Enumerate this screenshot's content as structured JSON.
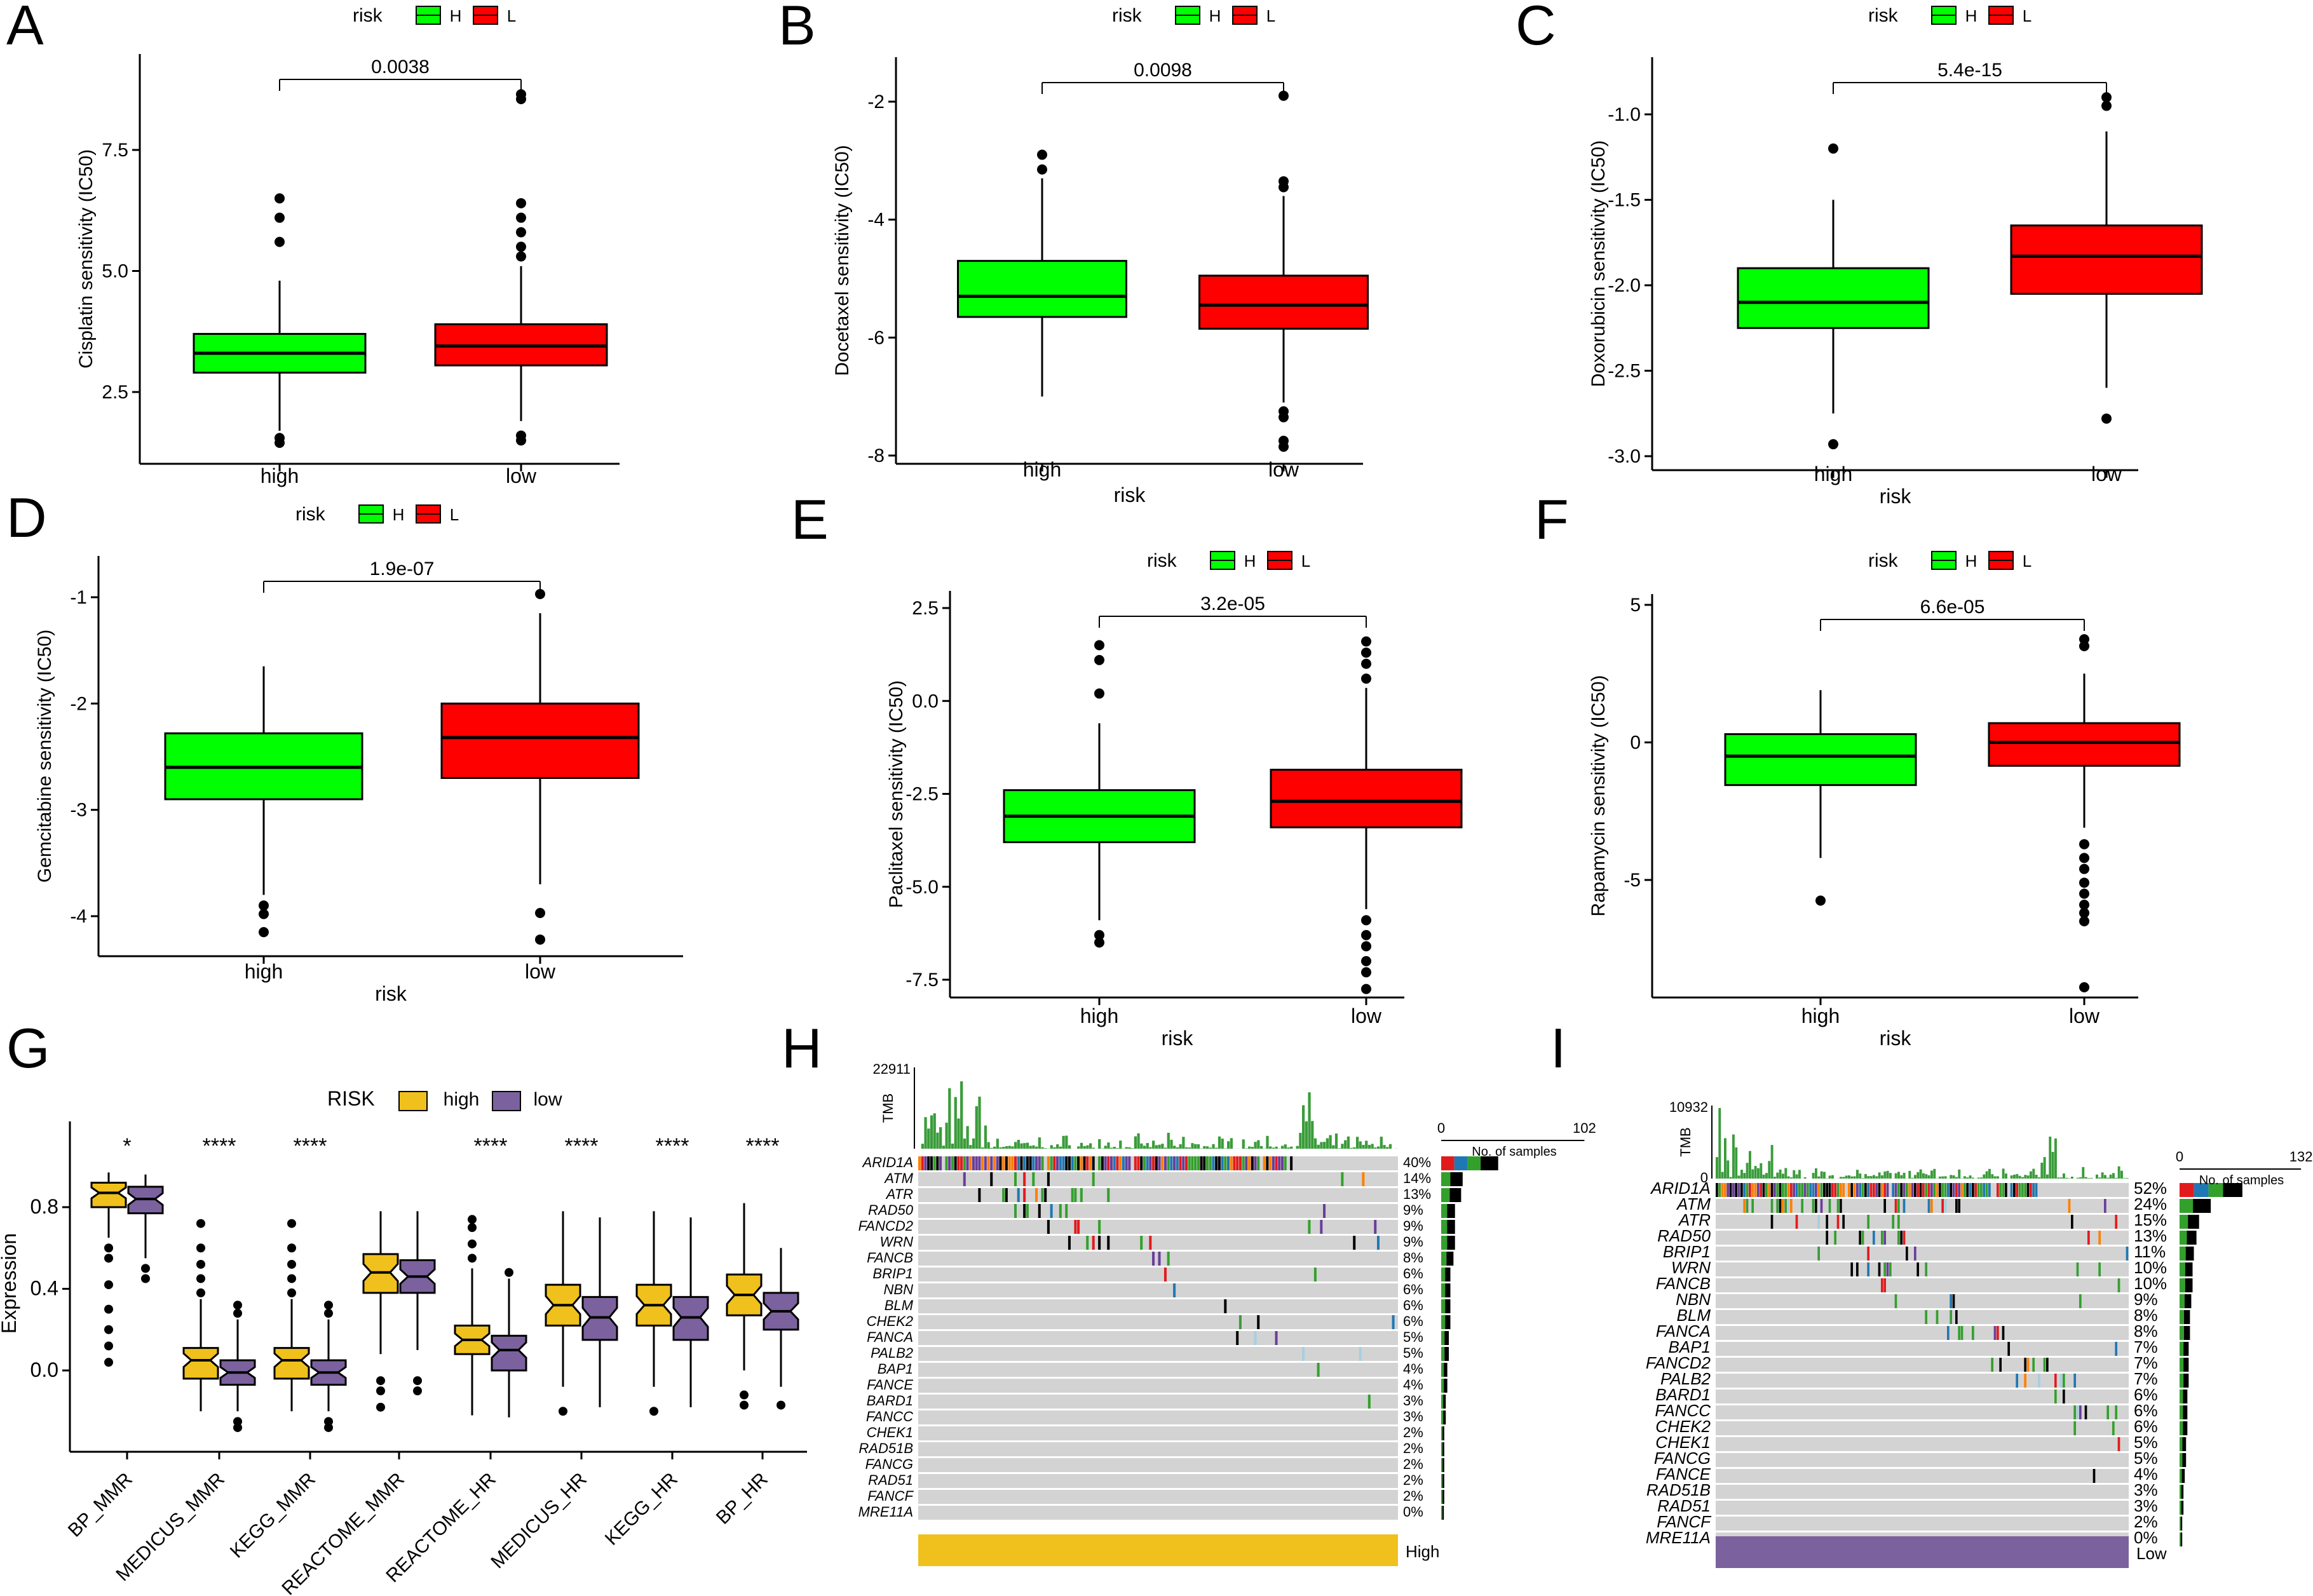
{
  "colors": {
    "H": "#00ff00",
    "L": "#ff0000",
    "high": "#f0c11c",
    "low": "#7b629e",
    "grey": "#d3d3d3",
    "tmb": "#3a9c3a"
  },
  "chart_data": [
    {
      "id": "A",
      "type": "box",
      "panel_label": "A",
      "legend_title": "risk",
      "legend_items": [
        "H",
        "L"
      ],
      "ylabel": "Cisplatin sensitivity (IC50)",
      "xlabel": "",
      "categories": [
        "high",
        "low"
      ],
      "yticks": [
        "2.5",
        "5.0",
        "7.5"
      ],
      "pvalue": "0.0038",
      "boxes": [
        {
          "q1": 2.9,
          "median": 3.3,
          "q3": 3.7,
          "whislo": 1.7,
          "whishi": 4.8,
          "outliers": [
            1.45,
            1.55,
            5.6,
            6.1,
            6.5
          ]
        },
        {
          "q1": 3.05,
          "median": 3.45,
          "q3": 3.9,
          "whislo": 1.9,
          "whishi": 5.1,
          "outliers": [
            1.5,
            1.6,
            5.3,
            5.5,
            5.8,
            6.1,
            6.4,
            8.55,
            8.65
          ]
        }
      ]
    },
    {
      "id": "B",
      "type": "box",
      "panel_label": "B",
      "legend_title": "risk",
      "legend_items": [
        "H",
        "L"
      ],
      "ylabel": "Docetaxel sensitivity (IC50)",
      "xlabel": "risk",
      "categories": [
        "high",
        "low"
      ],
      "yticks": [
        "-2",
        "-4",
        "-6",
        "-8"
      ],
      "pvalue": "0.0098",
      "boxes": [
        {
          "q1": -5.65,
          "median": -5.3,
          "q3": -4.7,
          "whislo": -7.0,
          "whishi": -3.3,
          "outliers": [
            -2.9,
            -3.15
          ]
        },
        {
          "q1": -5.85,
          "median": -5.45,
          "q3": -4.95,
          "whislo": -7.1,
          "whishi": -3.6,
          "outliers": [
            -1.9,
            -3.35,
            -3.45,
            -7.25,
            -7.35,
            -7.75,
            -7.85
          ]
        }
      ]
    },
    {
      "id": "C",
      "type": "box",
      "panel_label": "C",
      "legend_title": "risk",
      "legend_items": [
        "H",
        "L"
      ],
      "ylabel": "Doxorubicin sensitivity (IC50)",
      "xlabel": "risk",
      "categories": [
        "high",
        "low"
      ],
      "yticks": [
        "-1.0",
        "-1.5",
        "-2.0",
        "-2.5",
        "-3.0"
      ],
      "pvalue": "5.4e-15",
      "boxes": [
        {
          "q1": -2.25,
          "median": -2.1,
          "q3": -1.9,
          "whislo": -2.75,
          "whishi": -1.5,
          "outliers": [
            -1.2,
            -2.93
          ]
        },
        {
          "q1": -2.05,
          "median": -1.83,
          "q3": -1.65,
          "whislo": -2.6,
          "whishi": -1.1,
          "outliers": [
            -0.9,
            -0.95,
            -2.78
          ]
        }
      ]
    },
    {
      "id": "D",
      "type": "box",
      "panel_label": "D",
      "legend_title": "risk",
      "legend_items": [
        "H",
        "L"
      ],
      "ylabel": "Gemcitabine sensitivity (IC50)",
      "xlabel": "risk",
      "categories": [
        "high",
        "low"
      ],
      "yticks": [
        "-1",
        "-2",
        "-3",
        "-4"
      ],
      "pvalue": "1.9e-07",
      "boxes": [
        {
          "q1": -2.9,
          "median": -2.6,
          "q3": -2.28,
          "whislo": -3.8,
          "whishi": -1.65,
          "outliers": [
            -3.9,
            -3.98,
            -4.15
          ]
        },
        {
          "q1": -2.7,
          "median": -2.32,
          "q3": -2.0,
          "whislo": -3.7,
          "whishi": -1.15,
          "outliers": [
            -0.97,
            -3.97,
            -4.22
          ]
        }
      ]
    },
    {
      "id": "E",
      "type": "box",
      "panel_label": "E",
      "legend_title": "risk",
      "legend_items": [
        "H",
        "L"
      ],
      "ylabel": "Paclitaxel sensitivity (IC50)",
      "xlabel": "risk",
      "categories": [
        "high",
        "low"
      ],
      "yticks": [
        "2.5",
        "0.0",
        "-2.5",
        "-5.0",
        "-7.5"
      ],
      "pvalue": "3.2e-05",
      "boxes": [
        {
          "q1": -3.8,
          "median": -3.1,
          "q3": -2.4,
          "whislo": -5.9,
          "whishi": -0.6,
          "outliers": [
            0.2,
            1.1,
            1.5,
            -6.3,
            -6.5
          ]
        },
        {
          "q1": -3.4,
          "median": -2.7,
          "q3": -1.85,
          "whislo": -5.6,
          "whishi": 0.35,
          "outliers": [
            0.6,
            1.0,
            1.3,
            1.6,
            -5.9,
            -6.3,
            -6.6,
            -7.0,
            -7.3,
            -7.75
          ]
        }
      ]
    },
    {
      "id": "F",
      "type": "box",
      "panel_label": "F",
      "legend_title": "risk",
      "legend_items": [
        "H",
        "L"
      ],
      "ylabel": "Rapamycin sensitivity (IC50)",
      "xlabel": "risk",
      "categories": [
        "high",
        "low"
      ],
      "yticks": [
        "5",
        "0",
        "-5"
      ],
      "pvalue": "6.6e-05",
      "boxes": [
        {
          "q1": -1.55,
          "median": -0.5,
          "q3": 0.3,
          "whislo": -4.2,
          "whishi": 1.9,
          "outliers": [
            -5.75
          ]
        },
        {
          "q1": -0.85,
          "median": 0.0,
          "q3": 0.7,
          "whislo": -3.1,
          "whishi": 2.5,
          "outliers": [
            3.5,
            3.75,
            -3.7,
            -4.2,
            -4.6,
            -5.1,
            -5.5,
            -5.9,
            -6.2,
            -6.5,
            -8.9
          ]
        }
      ]
    },
    {
      "id": "G",
      "type": "box",
      "notched": true,
      "panel_label": "G",
      "legend_title": "RISK",
      "legend_items": [
        "high",
        "low"
      ],
      "ylabel": "Expression",
      "yticks": [
        "0.0",
        "0.4",
        "0.8"
      ],
      "categories": [
        "BP_MMR",
        "MEDICUS_MMR",
        "KEGG_MMR",
        "REACTOME_MMR",
        "REACTOME_HR",
        "MEDICUS_HR",
        "KEGG_HR",
        "BP_HR"
      ],
      "significance": [
        "*",
        "****",
        "****",
        "",
        "****",
        "****",
        "****",
        "****"
      ],
      "series": [
        {
          "name": "high",
          "boxes": [
            {
              "q1": 0.8,
              "median": 0.87,
              "q3": 0.92,
              "whislo": 0.65,
              "whishi": 0.97,
              "outliers": [
                0.04,
                0.12,
                0.2,
                0.3,
                0.42,
                0.55,
                0.6
              ]
            },
            {
              "q1": -0.04,
              "median": 0.05,
              "q3": 0.11,
              "whislo": -0.2,
              "whishi": 0.35,
              "outliers": [
                0.38,
                0.45,
                0.52,
                0.6,
                0.72
              ]
            },
            {
              "q1": -0.04,
              "median": 0.05,
              "q3": 0.11,
              "whislo": -0.2,
              "whishi": 0.35,
              "outliers": [
                0.38,
                0.45,
                0.52,
                0.6,
                0.72
              ]
            },
            {
              "q1": 0.38,
              "median": 0.48,
              "q3": 0.57,
              "whislo": 0.08,
              "whishi": 0.78,
              "outliers": [
                -0.1,
                -0.05,
                -0.18
              ]
            },
            {
              "q1": 0.08,
              "median": 0.15,
              "q3": 0.22,
              "whislo": -0.22,
              "whishi": 0.5,
              "outliers": [
                0.55,
                0.62,
                0.7,
                0.74
              ]
            },
            {
              "q1": 0.22,
              "median": 0.32,
              "q3": 0.42,
              "whislo": -0.08,
              "whishi": 0.78,
              "outliers": [
                -0.2
              ]
            },
            {
              "q1": 0.22,
              "median": 0.32,
              "q3": 0.42,
              "whislo": -0.08,
              "whishi": 0.78,
              "outliers": [
                -0.2
              ]
            },
            {
              "q1": 0.27,
              "median": 0.37,
              "q3": 0.47,
              "whislo": 0.0,
              "whishi": 0.82,
              "outliers": [
                -0.12,
                -0.17
              ]
            }
          ]
        },
        {
          "name": "low",
          "boxes": [
            {
              "q1": 0.77,
              "median": 0.84,
              "q3": 0.9,
              "whislo": 0.55,
              "whishi": 0.96,
              "outliers": [
                0.45,
                0.5
              ]
            },
            {
              "q1": -0.07,
              "median": -0.01,
              "q3": 0.05,
              "whislo": -0.2,
              "whishi": 0.25,
              "outliers": [
                -0.25,
                -0.28,
                0.28,
                0.32
              ]
            },
            {
              "q1": -0.07,
              "median": -0.01,
              "q3": 0.05,
              "whislo": -0.2,
              "whishi": 0.25,
              "outliers": [
                -0.25,
                -0.28,
                0.28,
                0.32
              ]
            },
            {
              "q1": 0.38,
              "median": 0.46,
              "q3": 0.54,
              "whislo": 0.1,
              "whishi": 0.78,
              "outliers": [
                -0.05,
                -0.1
              ]
            },
            {
              "q1": 0.0,
              "median": 0.1,
              "q3": 0.17,
              "whislo": -0.23,
              "whishi": 0.45,
              "outliers": [
                0.48
              ]
            },
            {
              "q1": 0.15,
              "median": 0.26,
              "q3": 0.36,
              "whislo": -0.18,
              "whishi": 0.75,
              "outliers": []
            },
            {
              "q1": 0.15,
              "median": 0.26,
              "q3": 0.36,
              "whislo": -0.18,
              "whishi": 0.75,
              "outliers": []
            },
            {
              "q1": 0.2,
              "median": 0.29,
              "q3": 0.38,
              "whislo": -0.08,
              "whishi": 0.6,
              "outliers": [
                -0.17
              ]
            }
          ]
        }
      ]
    },
    {
      "id": "H",
      "type": "oncoplot",
      "panel_label": "H",
      "tmb_label": "TMB",
      "tmb_max": "22911",
      "bar_label": "No. of samples",
      "bar_axis": [
        "0",
        "102"
      ],
      "group_label": "High",
      "genes": [
        "ARID1A",
        "ATM",
        "ATR",
        "RAD50",
        "FANCD2",
        "WRN",
        "FANCB",
        "BRIP1",
        "NBN",
        "BLM",
        "CHEK2",
        "FANCA",
        "PALB2",
        "BAP1",
        "FANCE",
        "BARD1",
        "FANCC",
        "CHEK1",
        "RAD51B",
        "FANCG",
        "RAD51",
        "FANCF",
        "MRE11A"
      ],
      "percentages": [
        "40%",
        "14%",
        "13%",
        "9%",
        "9%",
        "9%",
        "8%",
        "6%",
        "6%",
        "6%",
        "6%",
        "5%",
        "5%",
        "4%",
        "4%",
        "3%",
        "3%",
        "2%",
        "2%",
        "2%",
        "2%",
        "2%",
        "0%"
      ]
    },
    {
      "id": "I",
      "type": "oncoplot",
      "panel_label": "I",
      "tmb_label": "TMB",
      "tmb_max": "10932",
      "tmb_zero": "0",
      "bar_label": "No. of samples",
      "bar_axis": [
        "0",
        "132"
      ],
      "group_label": "Low",
      "genes": [
        "ARID1A",
        "ATM",
        "ATR",
        "RAD50",
        "BRIP1",
        "WRN",
        "FANCB",
        "NBN",
        "BLM",
        "FANCA",
        "BAP1",
        "FANCD2",
        "PALB2",
        "BARD1",
        "FANCC",
        "CHEK2",
        "CHEK1",
        "FANCG",
        "FANCE",
        "RAD51B",
        "RAD51",
        "FANCF",
        "MRE11A"
      ],
      "percentages": [
        "52%",
        "24%",
        "15%",
        "13%",
        "11%",
        "10%",
        "10%",
        "9%",
        "8%",
        "8%",
        "7%",
        "7%",
        "7%",
        "6%",
        "6%",
        "6%",
        "5%",
        "5%",
        "4%",
        "3%",
        "3%",
        "2%",
        "0%"
      ]
    }
  ]
}
